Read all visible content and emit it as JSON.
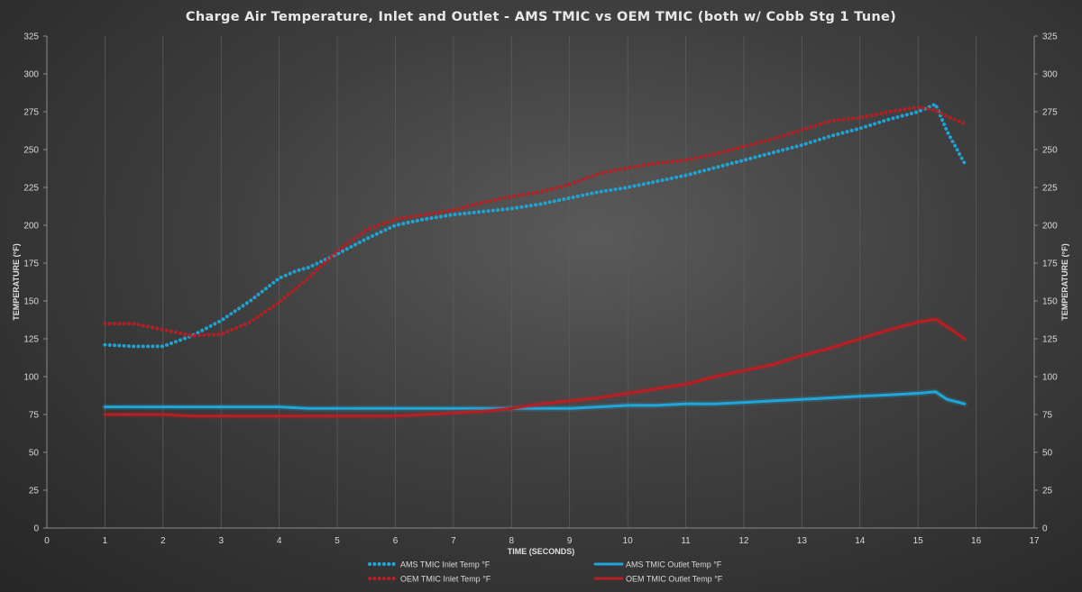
{
  "chart_data": {
    "type": "line",
    "title": "Charge Air Temperature, Inlet and Outlet - AMS TMIC vs OEM TMIC (both w/ Cobb Stg 1 Tune)",
    "xlabel": "TIME (SECONDS)",
    "ylabel": "TEMPERATURE (°F)",
    "ylabel_right": "TEMPERATURE (°F)",
    "xlim": [
      0,
      17
    ],
    "ylim": [
      0,
      325
    ],
    "x_ticks": [
      "0",
      "1",
      "2",
      "3",
      "4",
      "5",
      "6",
      "7",
      "8",
      "9",
      "10",
      "11",
      "12",
      "13",
      "14",
      "15",
      "16",
      "17"
    ],
    "y_ticks": [
      "0",
      "25",
      "50",
      "75",
      "100",
      "125",
      "150",
      "175",
      "200",
      "225",
      "250",
      "275",
      "300",
      "325"
    ],
    "grid": "vertical",
    "legend_position": "bottom",
    "colors": {
      "blue": "#1fa7d9",
      "red": "#b81f24"
    },
    "series": [
      {
        "name": "AMS TMIC Inlet Temp °F",
        "style": "dotted",
        "color": "#1fa7d9",
        "x": [
          1,
          1.5,
          2,
          2.5,
          3,
          3.5,
          4,
          4.3,
          4.5,
          5,
          5.5,
          6,
          6.5,
          7,
          7.5,
          8,
          8.5,
          9,
          9.5,
          10,
          10.5,
          11,
          11.5,
          12,
          12.5,
          13,
          13.5,
          14,
          14.5,
          15,
          15.3,
          15.5,
          15.8
        ],
        "y": [
          121,
          120,
          120,
          127,
          137,
          150,
          165,
          170,
          172,
          181,
          191,
          200,
          204,
          207,
          209,
          211,
          214,
          218,
          222,
          225,
          229,
          233,
          238,
          243,
          248,
          253,
          259,
          264,
          270,
          275,
          280,
          262,
          241
        ]
      },
      {
        "name": "OEM TMIC Inlet Temp °F",
        "style": "dotted",
        "color": "#b81f24",
        "x": [
          1,
          1.5,
          2,
          2.5,
          3,
          3.5,
          4,
          4.5,
          5,
          5.5,
          6,
          6.5,
          7,
          7.5,
          8,
          8.5,
          9,
          9.5,
          10,
          10.5,
          11,
          11.5,
          12,
          12.5,
          13,
          13.5,
          14,
          14.5,
          15,
          15.3,
          15.5,
          15.8
        ],
        "y": [
          135,
          135,
          131,
          127,
          128,
          136,
          149,
          165,
          183,
          197,
          204,
          207,
          210,
          215,
          219,
          222,
          227,
          234,
          238,
          241,
          243,
          247,
          252,
          257,
          263,
          269,
          271,
          275,
          278,
          276,
          272,
          267
        ]
      },
      {
        "name": "AMS TMIC Outlet Temp °F",
        "style": "solid",
        "color": "#1fa7d9",
        "x": [
          1,
          2,
          3,
          4,
          4.5,
          5,
          5.5,
          6,
          7,
          8,
          9,
          9.5,
          10,
          10.5,
          11,
          11.5,
          12,
          12.5,
          13,
          13.5,
          14,
          14.5,
          15,
          15.3,
          15.5,
          15.8
        ],
        "y": [
          80,
          80,
          80,
          80,
          79,
          79,
          79,
          79,
          79,
          79,
          79,
          80,
          81,
          81,
          82,
          82,
          83,
          84,
          85,
          86,
          87,
          88,
          89,
          90,
          85,
          82
        ]
      },
      {
        "name": "OEM TMIC Outlet Temp °F",
        "style": "solid",
        "color": "#b81f24",
        "x": [
          1,
          2,
          2.5,
          3,
          4,
          5,
          6,
          6.5,
          7,
          7.5,
          8,
          8.5,
          9,
          9.5,
          10,
          10.5,
          11,
          11.5,
          12,
          12.5,
          13,
          13.5,
          14,
          14.5,
          15,
          15.3,
          15.5,
          15.8
        ],
        "y": [
          75,
          75,
          74,
          74,
          74,
          74,
          74,
          75,
          76,
          77,
          79,
          82,
          84,
          86,
          89,
          92,
          95,
          100,
          104,
          108,
          114,
          119,
          125,
          131,
          136,
          138,
          133,
          125
        ]
      }
    ]
  }
}
